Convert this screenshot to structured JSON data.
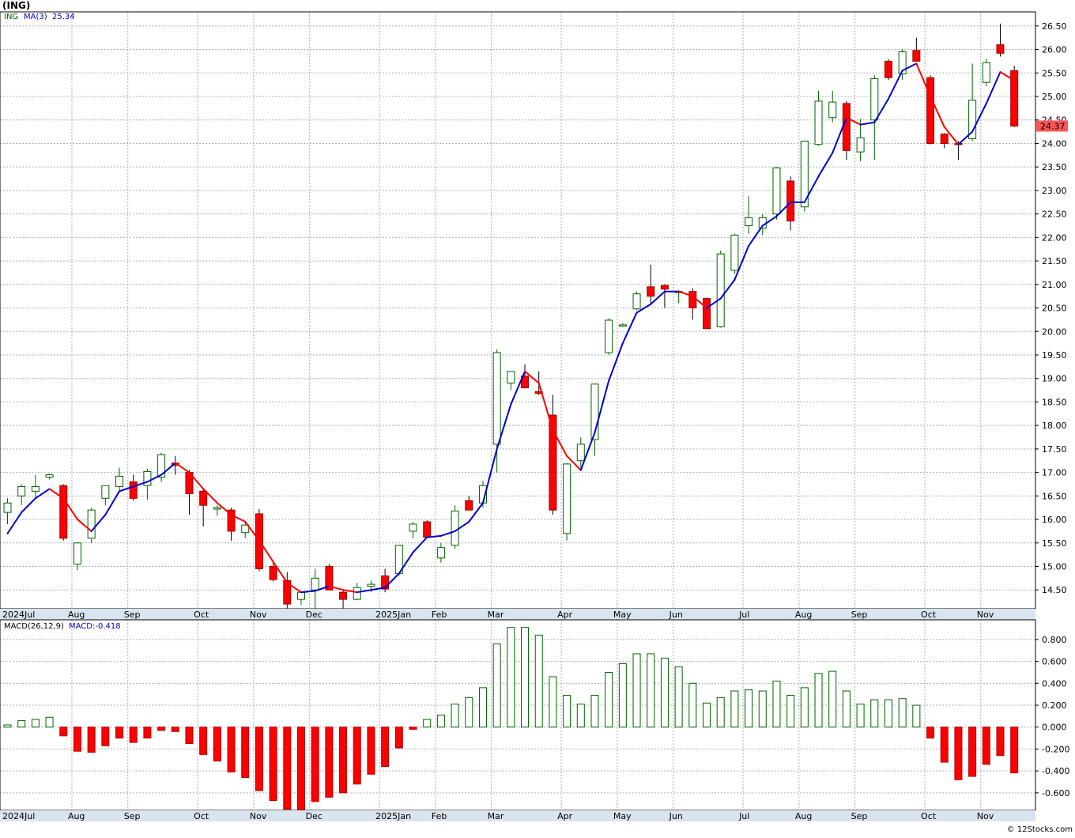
{
  "chart_data": {
    "type": "candlestick",
    "title": "(ING)",
    "symbol": "ING",
    "watermark": "© 12Stocks.com",
    "last_price_label": "24.37",
    "price_panel": {
      "ylim": [
        14.1,
        26.8
      ],
      "yticks": [
        14.5,
        15.0,
        15.5,
        16.0,
        16.5,
        17.0,
        17.5,
        18.0,
        18.5,
        19.0,
        19.5,
        20.0,
        20.5,
        21.0,
        21.5,
        22.0,
        22.5,
        23.0,
        23.5,
        24.0,
        24.5,
        25.0,
        25.5,
        26.0,
        26.5
      ],
      "ytick_labels": [
        "14.50",
        "15.00",
        "15.50",
        "16.00",
        "16.50",
        "17.00",
        "17.50",
        "18.00",
        "18.50",
        "19.00",
        "19.50",
        "20.00",
        "20.50",
        "21.00",
        "21.50",
        "22.00",
        "22.50",
        "23.00",
        "23.50",
        "24.00",
        "24.50",
        "25.00",
        "25.50",
        "26.00",
        "26.50"
      ],
      "legend": {
        "symbol": "ING",
        "ma_label": "MA(3)",
        "ma_value": "25.34"
      },
      "colors": {
        "up_fill": "#ffffff",
        "up_stroke": "#006400",
        "down_fill": "#ff0000",
        "down_stroke": "#990000",
        "ma_up": "#0000cc",
        "ma_down": "#ff0000",
        "grid": "#b0b0b0",
        "axis_band": "#d8e4ee"
      }
    },
    "candles": [
      {
        "o": 16.15,
        "h": 16.45,
        "l": 15.9,
        "c": 16.35
      },
      {
        "o": 16.5,
        "h": 16.75,
        "l": 16.3,
        "c": 16.7
      },
      {
        "o": 16.6,
        "h": 16.95,
        "l": 16.45,
        "c": 16.7
      },
      {
        "o": 16.9,
        "h": 16.98,
        "l": 16.85,
        "c": 16.95
      },
      {
        "o": 16.72,
        "h": 16.75,
        "l": 15.55,
        "c": 15.6
      },
      {
        "o": 15.05,
        "h": 15.52,
        "l": 14.92,
        "c": 15.5
      },
      {
        "o": 15.6,
        "h": 16.25,
        "l": 15.5,
        "c": 16.2
      },
      {
        "o": 16.45,
        "h": 16.7,
        "l": 16.3,
        "c": 16.72
      },
      {
        "o": 16.7,
        "h": 17.1,
        "l": 16.6,
        "c": 16.92
      },
      {
        "o": 16.8,
        "h": 16.95,
        "l": 16.4,
        "c": 16.45
      },
      {
        "o": 16.72,
        "h": 17.08,
        "l": 16.42,
        "c": 17.02
      },
      {
        "o": 16.9,
        "h": 17.42,
        "l": 16.8,
        "c": 17.38
      },
      {
        "o": 17.2,
        "h": 17.35,
        "l": 16.95,
        "c": 17.15
      },
      {
        "o": 17.0,
        "h": 17.05,
        "l": 16.1,
        "c": 16.55
      },
      {
        "o": 16.6,
        "h": 16.65,
        "l": 15.85,
        "c": 16.3
      },
      {
        "o": 16.22,
        "h": 16.3,
        "l": 16.08,
        "c": 16.25
      },
      {
        "o": 16.2,
        "h": 16.25,
        "l": 15.55,
        "c": 15.75
      },
      {
        "o": 15.72,
        "h": 15.95,
        "l": 15.6,
        "c": 15.88
      },
      {
        "o": 16.12,
        "h": 16.22,
        "l": 14.9,
        "c": 14.95
      },
      {
        "o": 15.0,
        "h": 15.1,
        "l": 14.68,
        "c": 14.72
      },
      {
        "o": 14.7,
        "h": 14.88,
        "l": 14.05,
        "c": 14.2
      },
      {
        "o": 14.3,
        "h": 14.47,
        "l": 14.18,
        "c": 14.45
      },
      {
        "o": 14.5,
        "h": 14.95,
        "l": 14.1,
        "c": 14.75
      },
      {
        "o": 15.0,
        "h": 15.05,
        "l": 14.5,
        "c": 14.5
      },
      {
        "o": 14.45,
        "h": 14.5,
        "l": 14.05,
        "c": 14.3
      },
      {
        "o": 14.3,
        "h": 14.65,
        "l": 14.28,
        "c": 14.55
      },
      {
        "o": 14.58,
        "h": 14.7,
        "l": 14.45,
        "c": 14.62
      },
      {
        "o": 14.8,
        "h": 14.95,
        "l": 14.45,
        "c": 14.52
      },
      {
        "o": 14.85,
        "h": 15.45,
        "l": 14.8,
        "c": 15.45
      },
      {
        "o": 15.75,
        "h": 15.95,
        "l": 15.6,
        "c": 15.9
      },
      {
        "o": 15.95,
        "h": 15.98,
        "l": 15.62,
        "c": 15.62
      },
      {
        "o": 15.18,
        "h": 15.5,
        "l": 15.08,
        "c": 15.4
      },
      {
        "o": 15.45,
        "h": 16.3,
        "l": 15.38,
        "c": 16.18
      },
      {
        "o": 16.4,
        "h": 16.5,
        "l": 16.2,
        "c": 16.2
      },
      {
        "o": 16.35,
        "h": 16.82,
        "l": 16.25,
        "c": 16.72
      },
      {
        "o": 17.6,
        "h": 19.62,
        "l": 17.0,
        "c": 19.55
      },
      {
        "o": 18.9,
        "h": 19.15,
        "l": 18.75,
        "c": 19.15
      },
      {
        "o": 19.05,
        "h": 19.3,
        "l": 18.8,
        "c": 18.8
      },
      {
        "o": 18.72,
        "h": 19.15,
        "l": 18.65,
        "c": 18.68
      },
      {
        "o": 18.22,
        "h": 18.65,
        "l": 16.1,
        "c": 16.2
      },
      {
        "o": 15.7,
        "h": 17.2,
        "l": 15.55,
        "c": 17.18
      },
      {
        "o": 17.25,
        "h": 17.75,
        "l": 17.1,
        "c": 17.6
      },
      {
        "o": 17.7,
        "h": 18.88,
        "l": 17.35,
        "c": 18.88
      },
      {
        "o": 19.55,
        "h": 20.28,
        "l": 19.5,
        "c": 20.24
      },
      {
        "o": 20.13,
        "h": 20.18,
        "l": 20.1,
        "c": 20.14
      },
      {
        "o": 20.48,
        "h": 20.85,
        "l": 20.45,
        "c": 20.8
      },
      {
        "o": 20.95,
        "h": 21.42,
        "l": 20.6,
        "c": 20.75
      },
      {
        "o": 20.98,
        "h": 21.0,
        "l": 20.5,
        "c": 20.9
      },
      {
        "o": 20.85,
        "h": 20.88,
        "l": 20.6,
        "c": 20.85
      },
      {
        "o": 20.85,
        "h": 20.92,
        "l": 20.25,
        "c": 20.5
      },
      {
        "o": 20.7,
        "h": 20.72,
        "l": 20.05,
        "c": 20.06
      },
      {
        "o": 20.1,
        "h": 21.72,
        "l": 20.08,
        "c": 21.65
      },
      {
        "o": 21.3,
        "h": 22.08,
        "l": 21.22,
        "c": 22.05
      },
      {
        "o": 22.25,
        "h": 22.88,
        "l": 22.08,
        "c": 22.42
      },
      {
        "o": 22.2,
        "h": 22.5,
        "l": 22.05,
        "c": 22.42
      },
      {
        "o": 22.5,
        "h": 23.5,
        "l": 22.38,
        "c": 23.48
      },
      {
        "o": 23.2,
        "h": 23.3,
        "l": 22.15,
        "c": 22.35
      },
      {
        "o": 22.65,
        "h": 24.05,
        "l": 22.55,
        "c": 24.05
      },
      {
        "o": 23.98,
        "h": 25.12,
        "l": 23.95,
        "c": 24.9
      },
      {
        "o": 24.55,
        "h": 25.12,
        "l": 24.45,
        "c": 24.88
      },
      {
        "o": 24.85,
        "h": 24.9,
        "l": 23.65,
        "c": 23.85
      },
      {
        "o": 23.82,
        "h": 24.52,
        "l": 23.62,
        "c": 24.12
      },
      {
        "o": 24.5,
        "h": 25.45,
        "l": 23.65,
        "c": 25.38
      },
      {
        "o": 25.75,
        "h": 25.8,
        "l": 25.35,
        "c": 25.4
      },
      {
        "o": 25.48,
        "h": 26.0,
        "l": 25.35,
        "c": 25.95
      },
      {
        "o": 25.98,
        "h": 26.25,
        "l": 25.75,
        "c": 25.75
      },
      {
        "o": 25.4,
        "h": 25.45,
        "l": 23.98,
        "c": 24.0
      },
      {
        "o": 24.2,
        "h": 24.22,
        "l": 23.9,
        "c": 24.0
      },
      {
        "o": 24.0,
        "h": 24.05,
        "l": 23.65,
        "c": 23.98
      },
      {
        "o": 24.1,
        "h": 25.7,
        "l": 24.05,
        "c": 24.92
      },
      {
        "o": 25.3,
        "h": 25.8,
        "l": 25.22,
        "c": 25.72
      },
      {
        "o": 26.1,
        "h": 26.55,
        "l": 25.85,
        "c": 25.92
      },
      {
        "o": 25.55,
        "h": 25.65,
        "l": 24.35,
        "c": 24.37
      }
    ],
    "ma3": [
      15.7,
      16.15,
      16.45,
      16.65,
      16.45,
      16.0,
      15.75,
      16.1,
      16.6,
      16.7,
      16.8,
      16.95,
      17.2,
      17.0,
      16.65,
      16.35,
      16.1,
      15.95,
      15.55,
      15.1,
      14.65,
      14.45,
      14.48,
      14.58,
      14.5,
      14.45,
      14.5,
      14.55,
      14.85,
      15.3,
      15.62,
      15.65,
      15.75,
      15.95,
      16.35,
      17.5,
      18.45,
      19.15,
      18.9,
      17.9,
      17.35,
      17.05,
      17.85,
      18.95,
      19.75,
      20.4,
      20.58,
      20.85,
      20.85,
      20.75,
      20.5,
      20.7,
      21.1,
      21.82,
      22.25,
      22.45,
      22.75,
      22.75,
      23.3,
      23.8,
      24.55,
      24.4,
      24.45,
      24.95,
      25.55,
      25.7,
      25.0,
      24.35,
      23.98,
      24.25,
      24.85,
      25.52,
      25.34
    ],
    "macd_panel": {
      "label": "MACD(26,12,9)",
      "value_label": "MACD:-0.418",
      "ylim": [
        -0.76,
        0.98
      ],
      "yticks": [
        -0.6,
        -0.4,
        -0.2,
        0.0,
        0.2,
        0.4,
        0.6,
        0.8
      ],
      "ytick_labels": [
        "-0.600",
        "-0.400",
        "-0.200",
        "0.000",
        "0.200",
        "0.400",
        "0.600",
        "0.800"
      ],
      "values": [
        0.02,
        0.06,
        0.07,
        0.09,
        -0.08,
        -0.22,
        -0.23,
        -0.17,
        -0.1,
        -0.14,
        -0.1,
        -0.03,
        -0.04,
        -0.15,
        -0.25,
        -0.31,
        -0.41,
        -0.46,
        -0.58,
        -0.67,
        -0.75,
        -0.76,
        -0.68,
        -0.64,
        -0.6,
        -0.52,
        -0.43,
        -0.36,
        -0.19,
        -0.02,
        0.07,
        0.11,
        0.21,
        0.27,
        0.36,
        0.76,
        0.91,
        0.91,
        0.84,
        0.46,
        0.29,
        0.21,
        0.29,
        0.5,
        0.58,
        0.67,
        0.67,
        0.63,
        0.55,
        0.4,
        0.22,
        0.27,
        0.33,
        0.34,
        0.33,
        0.42,
        0.29,
        0.36,
        0.49,
        0.51,
        0.33,
        0.21,
        0.25,
        0.25,
        0.26,
        0.2,
        -0.1,
        -0.32,
        -0.48,
        -0.45,
        -0.34,
        -0.26,
        -0.418
      ]
    },
    "x_labels": [
      {
        "i": 0.5,
        "label": "2024Jul"
      },
      {
        "i": 5,
        "label": "Aug"
      },
      {
        "i": 9,
        "label": "Sep"
      },
      {
        "i": 14,
        "label": "Oct"
      },
      {
        "i": 18,
        "label": "Nov"
      },
      {
        "i": 22,
        "label": "Dec"
      },
      {
        "i": 27,
        "label": "2025Jan"
      },
      {
        "i": 31,
        "label": "Feb"
      },
      {
        "i": 35,
        "label": "Mar"
      },
      {
        "i": 40,
        "label": "Apr"
      },
      {
        "i": 44,
        "label": "May"
      },
      {
        "i": 48,
        "label": "Jun"
      },
      {
        "i": 53,
        "label": "Jul"
      },
      {
        "i": 57,
        "label": "Aug"
      },
      {
        "i": 61,
        "label": "Sep"
      },
      {
        "i": 66,
        "label": "Oct"
      },
      {
        "i": 70,
        "label": "Nov"
      }
    ]
  }
}
